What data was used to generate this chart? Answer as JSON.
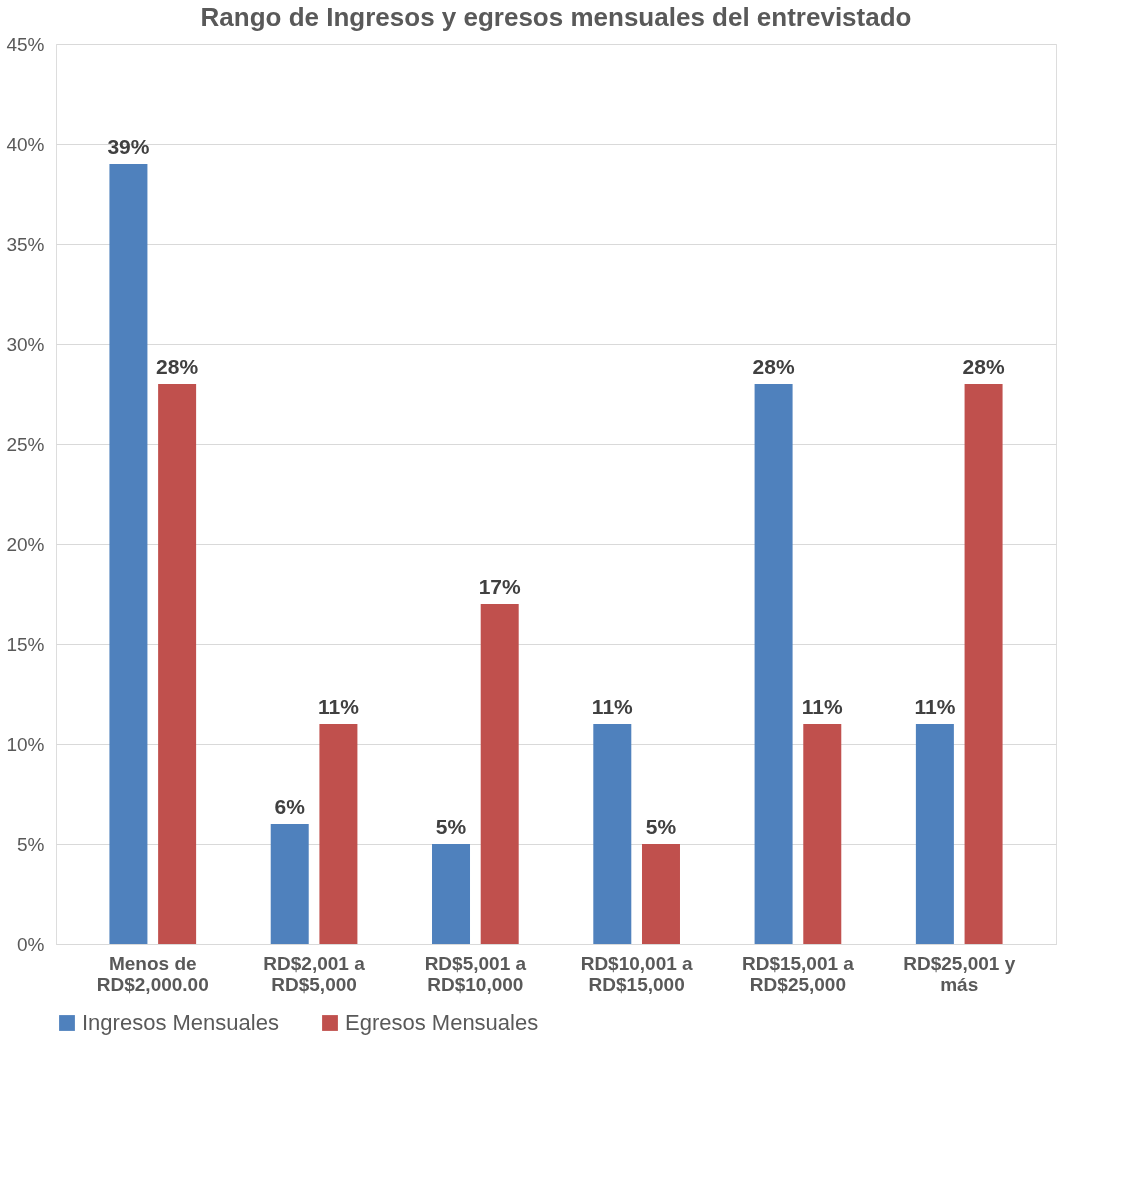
{
  "chart_data": {
    "type": "bar",
    "title": "Rango de Ingresos y egresos mensuales del entrevistado",
    "categories": [
      "Menos de\nRD$2,000.00",
      "RD$2,001 a\nRD$5,000",
      "RD$5,001 a\nRD$10,000",
      "RD$10,001 a\nRD$15,000",
      "RD$15,001 a\nRD$25,000",
      "RD$25,001 y\nmás"
    ],
    "series": [
      {
        "name": "Ingresos Mensuales",
        "color": "#4f81bd",
        "values": [
          39,
          6,
          5,
          11,
          28,
          11
        ],
        "value_labels": [
          "39%",
          "6%",
          "5%",
          "11%",
          "28%",
          "11%"
        ]
      },
      {
        "name": "Egresos Mensuales",
        "color": "#c0504d",
        "values": [
          28,
          11,
          17,
          5,
          11,
          28
        ],
        "value_labels": [
          "28%",
          "11%",
          "17%",
          "5%",
          "11%",
          "28%"
        ]
      }
    ],
    "ylim": [
      0,
      45
    ],
    "yticks": [
      {
        "value": 0,
        "label": "0%"
      },
      {
        "value": 5,
        "label": "5%"
      },
      {
        "value": 10,
        "label": "10%"
      },
      {
        "value": 15,
        "label": "15%"
      },
      {
        "value": 20,
        "label": "20%"
      },
      {
        "value": 25,
        "label": "25%"
      },
      {
        "value": 30,
        "label": "30%"
      },
      {
        "value": 35,
        "label": "35%"
      },
      {
        "value": 40,
        "label": "40%"
      },
      {
        "value": 45,
        "label": "45%"
      }
    ],
    "grid": "y",
    "legend": "bottom"
  }
}
